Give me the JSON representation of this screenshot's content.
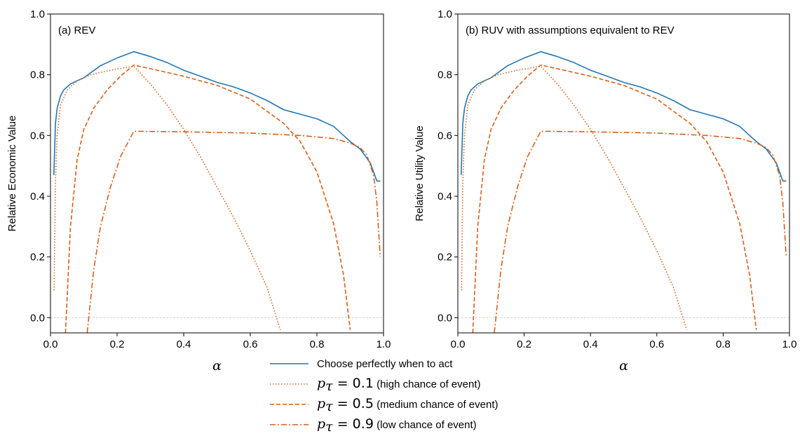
{
  "chart_data": [
    {
      "type": "line",
      "title": "(a) REV",
      "xlabel": "α",
      "ylabel": "Relative Economic Value",
      "xlim": [
        0.0,
        1.0
      ],
      "ylim": [
        -0.05,
        1.0
      ],
      "xticks": [
        "0.0",
        "0.2",
        "0.4",
        "0.6",
        "0.8",
        "1.0"
      ],
      "yticks": [
        "0.0",
        "0.2",
        "0.4",
        "0.6",
        "0.8",
        "1.0"
      ],
      "reference_line_y": 0.0,
      "series": [
        {
          "name": "Choose perfectly when to act",
          "style": "solid",
          "points": [
            [
              0.01,
              0.47
            ],
            [
              0.015,
              0.64
            ],
            [
              0.02,
              0.69
            ],
            [
              0.03,
              0.73
            ],
            [
              0.04,
              0.75
            ],
            [
              0.06,
              0.77
            ],
            [
              0.08,
              0.78
            ],
            [
              0.1,
              0.79
            ],
            [
              0.15,
              0.83
            ],
            [
              0.2,
              0.855
            ],
            [
              0.25,
              0.876
            ],
            [
              0.3,
              0.86
            ],
            [
              0.35,
              0.84
            ],
            [
              0.4,
              0.815
            ],
            [
              0.45,
              0.795
            ],
            [
              0.5,
              0.775
            ],
            [
              0.55,
              0.76
            ],
            [
              0.6,
              0.74
            ],
            [
              0.65,
              0.715
            ],
            [
              0.7,
              0.685
            ],
            [
              0.75,
              0.67
            ],
            [
              0.8,
              0.655
            ],
            [
              0.85,
              0.63
            ],
            [
              0.88,
              0.6
            ],
            [
              0.9,
              0.58
            ],
            [
              0.93,
              0.555
            ],
            [
              0.96,
              0.51
            ],
            [
              0.98,
              0.45
            ],
            [
              0.99,
              0.45
            ]
          ]
        },
        {
          "name": "p_τ = 0.1 (high chance of event)",
          "style": "dotted",
          "points": [
            [
              0.011,
              0.09
            ],
            [
              0.015,
              0.45
            ],
            [
              0.02,
              0.6
            ],
            [
              0.03,
              0.7
            ],
            [
              0.05,
              0.75
            ],
            [
              0.08,
              0.78
            ],
            [
              0.12,
              0.8
            ],
            [
              0.18,
              0.815
            ],
            [
              0.25,
              0.828
            ],
            [
              0.3,
              0.77
            ],
            [
              0.35,
              0.7
            ],
            [
              0.4,
              0.62
            ],
            [
              0.45,
              0.53
            ],
            [
              0.5,
              0.43
            ],
            [
              0.55,
              0.33
            ],
            [
              0.6,
              0.22
            ],
            [
              0.65,
              0.1
            ],
            [
              0.69,
              -0.04
            ]
          ]
        },
        {
          "name": "p_τ = 0.5 (medium chance of event)",
          "style": "dashed",
          "points": [
            [
              0.045,
              -0.05
            ],
            [
              0.06,
              0.3
            ],
            [
              0.08,
              0.52
            ],
            [
              0.1,
              0.62
            ],
            [
              0.13,
              0.69
            ],
            [
              0.17,
              0.75
            ],
            [
              0.21,
              0.795
            ],
            [
              0.25,
              0.832
            ],
            [
              0.3,
              0.82
            ],
            [
              0.4,
              0.795
            ],
            [
              0.5,
              0.765
            ],
            [
              0.6,
              0.72
            ],
            [
              0.7,
              0.64
            ],
            [
              0.75,
              0.58
            ],
            [
              0.8,
              0.48
            ],
            [
              0.85,
              0.31
            ],
            [
              0.88,
              0.14
            ],
            [
              0.9,
              -0.04
            ]
          ]
        },
        {
          "name": "p_τ = 0.9 (low chance of event)",
          "style": "dashdot",
          "points": [
            [
              0.11,
              -0.05
            ],
            [
              0.13,
              0.16
            ],
            [
              0.15,
              0.3
            ],
            [
              0.18,
              0.43
            ],
            [
              0.21,
              0.53
            ],
            [
              0.25,
              0.614
            ],
            [
              0.4,
              0.612
            ],
            [
              0.6,
              0.608
            ],
            [
              0.75,
              0.6
            ],
            [
              0.85,
              0.59
            ],
            [
              0.9,
              0.575
            ],
            [
              0.93,
              0.56
            ],
            [
              0.95,
              0.535
            ],
            [
              0.97,
              0.47
            ],
            [
              0.98,
              0.38
            ],
            [
              0.99,
              0.2
            ]
          ]
        }
      ]
    },
    {
      "type": "line",
      "title": "(b) RUV with assumptions equivalent to REV",
      "xlabel": "α",
      "ylabel": "Relative Utility Value",
      "xlim": [
        0.0,
        1.0
      ],
      "ylim": [
        -0.05,
        1.0
      ],
      "xticks": [
        "0.0",
        "0.2",
        "0.4",
        "0.6",
        "0.8",
        "1.0"
      ],
      "yticks": [
        "0.0",
        "0.2",
        "0.4",
        "0.6",
        "0.8",
        "1.0"
      ],
      "reference_line_y": 0.0,
      "series": [
        {
          "name": "Choose perfectly when to act",
          "style": "solid",
          "points": [
            [
              0.01,
              0.47
            ],
            [
              0.015,
              0.64
            ],
            [
              0.02,
              0.69
            ],
            [
              0.03,
              0.73
            ],
            [
              0.04,
              0.75
            ],
            [
              0.06,
              0.77
            ],
            [
              0.08,
              0.78
            ],
            [
              0.1,
              0.79
            ],
            [
              0.15,
              0.83
            ],
            [
              0.2,
              0.855
            ],
            [
              0.25,
              0.876
            ],
            [
              0.3,
              0.86
            ],
            [
              0.35,
              0.84
            ],
            [
              0.4,
              0.815
            ],
            [
              0.45,
              0.795
            ],
            [
              0.5,
              0.775
            ],
            [
              0.55,
              0.76
            ],
            [
              0.6,
              0.74
            ],
            [
              0.65,
              0.715
            ],
            [
              0.7,
              0.685
            ],
            [
              0.75,
              0.67
            ],
            [
              0.8,
              0.655
            ],
            [
              0.85,
              0.63
            ],
            [
              0.88,
              0.6
            ],
            [
              0.9,
              0.58
            ],
            [
              0.93,
              0.555
            ],
            [
              0.96,
              0.51
            ],
            [
              0.98,
              0.45
            ],
            [
              0.99,
              0.45
            ]
          ]
        },
        {
          "name": "p_τ = 0.1 (high chance of event)",
          "style": "dotted",
          "points": [
            [
              0.011,
              0.09
            ],
            [
              0.015,
              0.45
            ],
            [
              0.02,
              0.6
            ],
            [
              0.03,
              0.7
            ],
            [
              0.05,
              0.75
            ],
            [
              0.08,
              0.78
            ],
            [
              0.12,
              0.8
            ],
            [
              0.18,
              0.815
            ],
            [
              0.25,
              0.828
            ],
            [
              0.3,
              0.77
            ],
            [
              0.35,
              0.7
            ],
            [
              0.4,
              0.62
            ],
            [
              0.45,
              0.53
            ],
            [
              0.5,
              0.43
            ],
            [
              0.55,
              0.33
            ],
            [
              0.6,
              0.22
            ],
            [
              0.65,
              0.1
            ],
            [
              0.69,
              -0.04
            ]
          ]
        },
        {
          "name": "p_τ = 0.5 (medium chance of event)",
          "style": "dashed",
          "points": [
            [
              0.045,
              -0.05
            ],
            [
              0.06,
              0.3
            ],
            [
              0.08,
              0.52
            ],
            [
              0.1,
              0.62
            ],
            [
              0.13,
              0.69
            ],
            [
              0.17,
              0.75
            ],
            [
              0.21,
              0.795
            ],
            [
              0.25,
              0.832
            ],
            [
              0.3,
              0.82
            ],
            [
              0.4,
              0.795
            ],
            [
              0.5,
              0.765
            ],
            [
              0.6,
              0.72
            ],
            [
              0.7,
              0.64
            ],
            [
              0.75,
              0.58
            ],
            [
              0.8,
              0.48
            ],
            [
              0.85,
              0.31
            ],
            [
              0.88,
              0.14
            ],
            [
              0.9,
              -0.04
            ]
          ]
        },
        {
          "name": "p_τ = 0.9 (low chance of event)",
          "style": "dashdot",
          "points": [
            [
              0.11,
              -0.05
            ],
            [
              0.13,
              0.16
            ],
            [
              0.15,
              0.3
            ],
            [
              0.18,
              0.43
            ],
            [
              0.21,
              0.53
            ],
            [
              0.25,
              0.614
            ],
            [
              0.4,
              0.612
            ],
            [
              0.6,
              0.608
            ],
            [
              0.75,
              0.6
            ],
            [
              0.85,
              0.59
            ],
            [
              0.9,
              0.575
            ],
            [
              0.93,
              0.56
            ],
            [
              0.95,
              0.535
            ],
            [
              0.97,
              0.47
            ],
            [
              0.98,
              0.38
            ],
            [
              0.99,
              0.2
            ]
          ]
        }
      ]
    }
  ],
  "legend": {
    "placement": "bottom-center",
    "entries": [
      {
        "style": "solid",
        "color": "#1f77b4",
        "text": "Choose perfectly when to act"
      },
      {
        "style": "dotted",
        "color": "#d95f1a",
        "math": "p",
        "sub": "τ",
        "eq": " = 0.1",
        "text": " (high chance of event)"
      },
      {
        "style": "dashed",
        "color": "#d95f1a",
        "math": "p",
        "sub": "τ",
        "eq": " = 0.5",
        "text": " (medium chance of event)"
      },
      {
        "style": "dashdot",
        "color": "#d95f1a",
        "math": "p",
        "sub": "τ",
        "eq": " = 0.9",
        "text": " (low chance of event)"
      }
    ]
  },
  "colors": {
    "perfect": "#1f77b4",
    "scenario": "#d95f1a",
    "reference": "#cccccc"
  }
}
